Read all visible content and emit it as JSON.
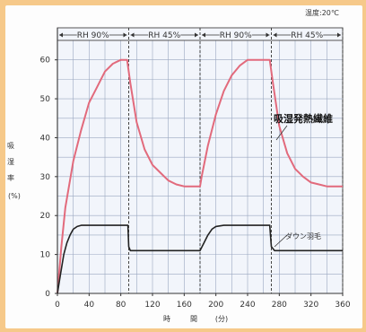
{
  "chart_data": {
    "type": "line",
    "condition_label": "温度:20℃",
    "ylabel_chars": [
      "吸",
      "湿",
      "率"
    ],
    "yunit": "(%)",
    "xlabel_chars": [
      "時",
      "間",
      "(分)"
    ],
    "xlim": [
      0,
      360
    ],
    "ylim": [
      0,
      65
    ],
    "xticks": [
      0,
      40,
      80,
      120,
      160,
      200,
      240,
      280,
      320,
      360
    ],
    "yticks": [
      0,
      10,
      20,
      30,
      40,
      50,
      60
    ],
    "phases": [
      {
        "label": "RH 90%",
        "start": 0,
        "end": 90
      },
      {
        "label": "RH 45%",
        "start": 90,
        "end": 180
      },
      {
        "label": "RH 90%",
        "start": 180,
        "end": 270
      },
      {
        "label": "RH 45%",
        "start": 270,
        "end": 360
      }
    ],
    "series": [
      {
        "name": "吸湿発熱繊維",
        "color": "#e26a7c",
        "x": [
          0,
          5,
          10,
          20,
          30,
          40,
          50,
          60,
          70,
          80,
          88,
          92,
          100,
          110,
          120,
          130,
          140,
          150,
          160,
          170,
          180,
          182,
          190,
          200,
          210,
          220,
          230,
          240,
          250,
          260,
          268,
          272,
          280,
          290,
          300,
          310,
          320,
          330,
          340,
          350,
          360
        ],
        "y": [
          0,
          12,
          22,
          34,
          42,
          49,
          53,
          57,
          59,
          60,
          60,
          54,
          44,
          37,
          33,
          31,
          29,
          28,
          27.5,
          27.5,
          27.5,
          30,
          38,
          46,
          52,
          56,
          58.5,
          60,
          60,
          60,
          60,
          54,
          43,
          36,
          32,
          30,
          28.5,
          28,
          27.5,
          27.5,
          27.5
        ]
      },
      {
        "name": "ダウン羽毛",
        "color": "#222222",
        "x": [
          0,
          4,
          8,
          12,
          16,
          20,
          25,
          30,
          40,
          50,
          60,
          70,
          80,
          89,
          90,
          92,
          100,
          120,
          140,
          160,
          180,
          185,
          190,
          195,
          200,
          210,
          220,
          240,
          260,
          268,
          270,
          274,
          280,
          300,
          320,
          340,
          360
        ],
        "y": [
          0,
          5,
          10,
          13,
          15,
          16.5,
          17.2,
          17.5,
          17.5,
          17.5,
          17.5,
          17.5,
          17.5,
          17.5,
          12,
          11,
          11,
          11,
          11,
          11,
          11,
          13,
          15,
          16.5,
          17.2,
          17.5,
          17.5,
          17.5,
          17.5,
          17.5,
          12,
          11,
          11,
          11,
          11,
          11,
          11
        ]
      }
    ],
    "annotations": [
      {
        "text": "吸湿発熱繊維",
        "series": 0
      },
      {
        "text": "ダウン羽毛",
        "series": 1
      }
    ]
  }
}
